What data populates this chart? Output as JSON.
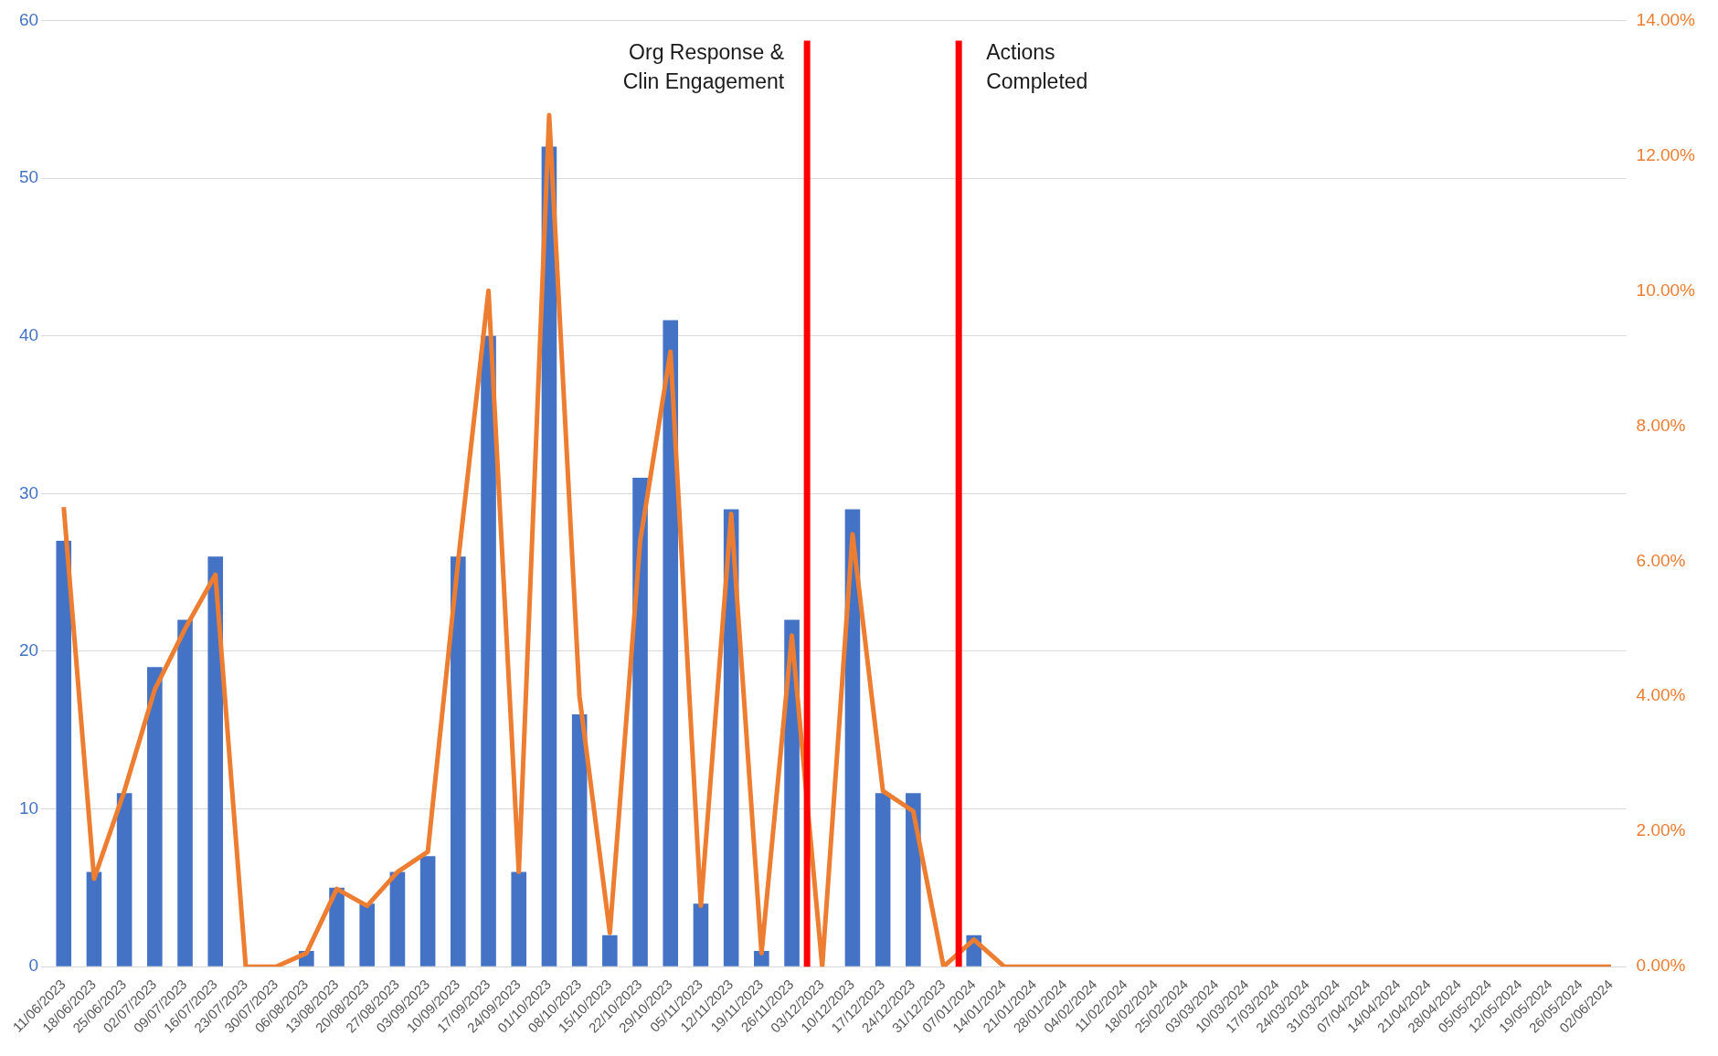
{
  "chart_data": {
    "type": "bar",
    "categories": [
      "11/06/2023",
      "18/06/2023",
      "25/06/2023",
      "02/07/2023",
      "09/07/2023",
      "16/07/2023",
      "23/07/2023",
      "30/07/2023",
      "06/08/2023",
      "13/08/2023",
      "20/08/2023",
      "27/08/2023",
      "03/09/2023",
      "10/09/2023",
      "17/09/2023",
      "24/09/2023",
      "01/10/2023",
      "08/10/2023",
      "15/10/2023",
      "22/10/2023",
      "29/10/2023",
      "05/11/2023",
      "12/11/2023",
      "19/11/2023",
      "26/11/2023",
      "03/12/2023",
      "10/12/2023",
      "17/12/2023",
      "24/12/2023",
      "31/12/2023",
      "07/01/2024",
      "14/01/2024",
      "21/01/2024",
      "28/01/2024",
      "04/02/2024",
      "11/02/2024",
      "18/02/2024",
      "25/02/2024",
      "03/03/2024",
      "10/03/2024",
      "17/03/2024",
      "24/03/2024",
      "31/03/2024",
      "07/04/2024",
      "14/04/2024",
      "21/04/2024",
      "28/04/2024",
      "05/05/2024",
      "12/05/2024",
      "19/05/2024",
      "26/05/2024",
      "02/06/2024"
    ],
    "series": [
      {
        "color": "#4472c4",
        "values": [
          27,
          6,
          11,
          19,
          22,
          26,
          0,
          0,
          1,
          5,
          4,
          6,
          7,
          26,
          40,
          6,
          52,
          16,
          2,
          31,
          41,
          4,
          29,
          1,
          22,
          0,
          29,
          11,
          11,
          0,
          2,
          0,
          0,
          0,
          0,
          0,
          0,
          0,
          0,
          0,
          0,
          0,
          0,
          0,
          0,
          0,
          0,
          0,
          0,
          0,
          0,
          0
        ]
      },
      {
        "type": "line",
        "axis": "y2",
        "color": "#ed7d31",
        "values": [
          6.8,
          1.3,
          2.6,
          4.1,
          5.0,
          5.8,
          0,
          0,
          0.2,
          1.15,
          0.9,
          1.4,
          1.7,
          6.0,
          10.0,
          1.4,
          12.6,
          4.0,
          0.5,
          6.3,
          9.1,
          0.9,
          6.7,
          0.2,
          4.9,
          0,
          6.4,
          2.6,
          2.3,
          0,
          0.4,
          0,
          0,
          0,
          0,
          0,
          0,
          0,
          0,
          0,
          0,
          0,
          0,
          0,
          0,
          0,
          0,
          0,
          0,
          0,
          0,
          0
        ]
      }
    ],
    "ylim": [
      0,
      60
    ],
    "yticks": [
      0,
      10,
      20,
      30,
      40,
      50,
      60
    ],
    "y2lim": [
      0,
      14
    ],
    "y2ticks": [
      {
        "value": 0,
        "label": "0.00%"
      },
      {
        "value": 2,
        "label": "2.00%"
      },
      {
        "value": 4,
        "label": "4.00%"
      },
      {
        "value": 6,
        "label": "6.00%"
      },
      {
        "value": 8,
        "label": "8.00%"
      },
      {
        "value": 10,
        "label": "10.00%"
      },
      {
        "value": 12,
        "label": "12.00%"
      },
      {
        "value": 14,
        "label": "14.00%"
      }
    ],
    "annotations": [
      "Org Response &\nClin Engagement",
      "Actions\nCompleted"
    ],
    "grid": "y",
    "legend": false,
    "marker": "none",
    "line_style": "solid"
  }
}
